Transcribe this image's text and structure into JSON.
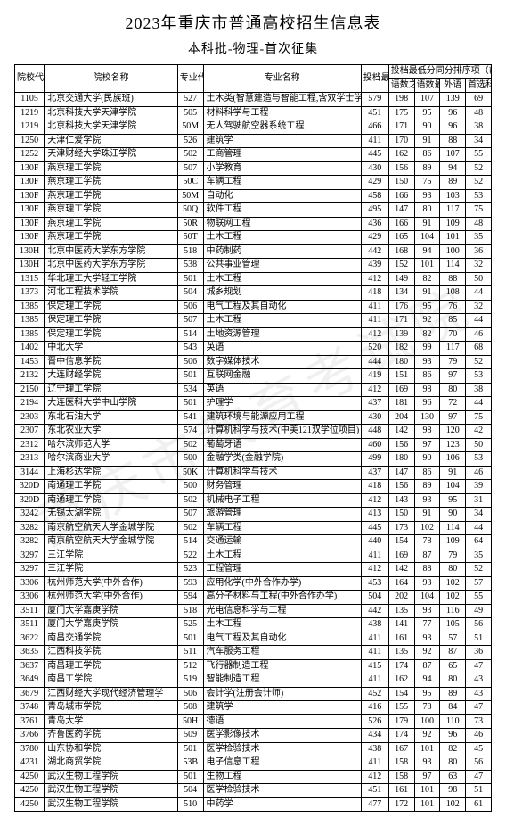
{
  "title": "2023年重庆市普通高校招生信息表",
  "subtitle": "本科批-物理-首次征集",
  "watermark": "重庆市教育考试院",
  "headers": {
    "code": "院校代号",
    "school": "院校名称",
    "mcode": "专业代号",
    "major": "专业名称",
    "minScore": "投档最低分",
    "tieGroup": "投档最低分同分排序项（前4项）",
    "t1": "语数之和",
    "t2": "语数最高",
    "t3": "外语",
    "t4": "首选科目"
  },
  "rows": [
    {
      "code": "1105",
      "school": "北京交通大学(民族班)",
      "mcode": "527",
      "major": "土木类(智慧建造与智能工程,含双学士学位项",
      "min": "579",
      "a": "198",
      "b": "107",
      "c": "139",
      "d": "69"
    },
    {
      "code": "1219",
      "school": "北京科技大学天津学院",
      "mcode": "505",
      "major": "材料科学与工程",
      "min": "451",
      "a": "175",
      "b": "95",
      "c": "96",
      "d": "48"
    },
    {
      "code": "1219",
      "school": "北京科技大学天津学院",
      "mcode": "50M",
      "major": "无人驾驶航空器系统工程",
      "min": "466",
      "a": "171",
      "b": "90",
      "c": "96",
      "d": "38"
    },
    {
      "code": "1250",
      "school": "天津仁爱学院",
      "mcode": "526",
      "major": "建筑学",
      "min": "411",
      "a": "170",
      "b": "91",
      "c": "88",
      "d": "34"
    },
    {
      "code": "1252",
      "school": "天津财经大学珠江学院",
      "mcode": "502",
      "major": "工商管理",
      "min": "445",
      "a": "162",
      "b": "86",
      "c": "107",
      "d": "55"
    },
    {
      "code": "130F",
      "school": "燕京理工学院",
      "mcode": "507",
      "major": "小学教育",
      "min": "430",
      "a": "156",
      "b": "89",
      "c": "94",
      "d": "52"
    },
    {
      "code": "130F",
      "school": "燕京理工学院",
      "mcode": "50C",
      "major": "车辆工程",
      "min": "429",
      "a": "150",
      "b": "75",
      "c": "89",
      "d": "52"
    },
    {
      "code": "130F",
      "school": "燕京理工学院",
      "mcode": "50M",
      "major": "自动化",
      "min": "458",
      "a": "166",
      "b": "93",
      "c": "103",
      "d": "53"
    },
    {
      "code": "130F",
      "school": "燕京理工学院",
      "mcode": "50Q",
      "major": "软件工程",
      "min": "495",
      "a": "147",
      "b": "80",
      "c": "117",
      "d": "75"
    },
    {
      "code": "130F",
      "school": "燕京理工学院",
      "mcode": "50R",
      "major": "物联网工程",
      "min": "436",
      "a": "166",
      "b": "91",
      "c": "109",
      "d": "48"
    },
    {
      "code": "130F",
      "school": "燕京理工学院",
      "mcode": "50T",
      "major": "土木工程",
      "min": "429",
      "a": "165",
      "b": "104",
      "c": "101",
      "d": "35"
    },
    {
      "code": "130H",
      "school": "北京中医药大学东方学院",
      "mcode": "518",
      "major": "中药制药",
      "min": "442",
      "a": "168",
      "b": "94",
      "c": "100",
      "d": "36"
    },
    {
      "code": "130H",
      "school": "北京中医药大学东方学院",
      "mcode": "538",
      "major": "公共事业管理",
      "min": "439",
      "a": "152",
      "b": "101",
      "c": "114",
      "d": "32"
    },
    {
      "code": "1315",
      "school": "华北理工大学轻工学院",
      "mcode": "501",
      "major": "土木工程",
      "min": "412",
      "a": "149",
      "b": "82",
      "c": "88",
      "d": "50"
    },
    {
      "code": "1373",
      "school": "河北工程技术学院",
      "mcode": "504",
      "major": "城乡规划",
      "min": "418",
      "a": "134",
      "b": "91",
      "c": "108",
      "d": "44"
    },
    {
      "code": "1385",
      "school": "保定理工学院",
      "mcode": "506",
      "major": "电气工程及其自动化",
      "min": "411",
      "a": "176",
      "b": "95",
      "c": "76",
      "d": "32"
    },
    {
      "code": "1385",
      "school": "保定理工学院",
      "mcode": "507",
      "major": "土木工程",
      "min": "411",
      "a": "171",
      "b": "92",
      "c": "85",
      "d": "44"
    },
    {
      "code": "1385",
      "school": "保定理工学院",
      "mcode": "514",
      "major": "土地资源管理",
      "min": "412",
      "a": "139",
      "b": "82",
      "c": "70",
      "d": "46"
    },
    {
      "code": "1402",
      "school": "中北大学",
      "mcode": "543",
      "major": "英语",
      "min": "520",
      "a": "182",
      "b": "99",
      "c": "117",
      "d": "68"
    },
    {
      "code": "1453",
      "school": "晋中信息学院",
      "mcode": "506",
      "major": "数字媒体技术",
      "min": "444",
      "a": "180",
      "b": "93",
      "c": "79",
      "d": "52"
    },
    {
      "code": "2132",
      "school": "大连财经学院",
      "mcode": "501",
      "major": "互联网金融",
      "min": "419",
      "a": "151",
      "b": "86",
      "c": "97",
      "d": "53"
    },
    {
      "code": "2150",
      "school": "辽宁理工学院",
      "mcode": "534",
      "major": "英语",
      "min": "412",
      "a": "169",
      "b": "98",
      "c": "80",
      "d": "38"
    },
    {
      "code": "2194",
      "school": "大连医科大学中山学院",
      "mcode": "501",
      "major": "护理学",
      "min": "437",
      "a": "181",
      "b": "96",
      "c": "72",
      "d": "44"
    },
    {
      "code": "2303",
      "school": "东北石油大学",
      "mcode": "541",
      "major": "建筑环境与能源应用工程",
      "min": "430",
      "a": "204",
      "b": "130",
      "c": "97",
      "d": "75"
    },
    {
      "code": "2307",
      "school": "东北农业大学",
      "mcode": "574",
      "major": "计算机科学与技术(中美121双学位项目)",
      "min": "448",
      "a": "142",
      "b": "98",
      "c": "120",
      "d": "42"
    },
    {
      "code": "2312",
      "school": "哈尔滨师范大学",
      "mcode": "502",
      "major": "葡萄牙语",
      "min": "460",
      "a": "156",
      "b": "97",
      "c": "123",
      "d": "50"
    },
    {
      "code": "2313",
      "school": "哈尔滨商业大学",
      "mcode": "500",
      "major": "金融学类(金融学院)",
      "min": "499",
      "a": "180",
      "b": "90",
      "c": "106",
      "d": "53"
    },
    {
      "code": "3144",
      "school": "上海杉达学院",
      "mcode": "50K",
      "major": "计算机科学与技术",
      "min": "437",
      "a": "147",
      "b": "86",
      "c": "91",
      "d": "46"
    },
    {
      "code": "320D",
      "school": "南通理工学院",
      "mcode": "500",
      "major": "财务管理",
      "min": "418",
      "a": "156",
      "b": "89",
      "c": "104",
      "d": "39"
    },
    {
      "code": "320D",
      "school": "南通理工学院",
      "mcode": "502",
      "major": "机械电子工程",
      "min": "412",
      "a": "143",
      "b": "93",
      "c": "95",
      "d": "31"
    },
    {
      "code": "3242",
      "school": "无锡太湖学院",
      "mcode": "507",
      "major": "旅游管理",
      "min": "413",
      "a": "150",
      "b": "91",
      "c": "90",
      "d": "34"
    },
    {
      "code": "3282",
      "school": "南京航空航天大学金城学院",
      "mcode": "502",
      "major": "车辆工程",
      "min": "445",
      "a": "173",
      "b": "102",
      "c": "114",
      "d": "44"
    },
    {
      "code": "3282",
      "school": "南京航空航天大学金城学院",
      "mcode": "514",
      "major": "交通运输",
      "min": "440",
      "a": "154",
      "b": "78",
      "c": "109",
      "d": "64"
    },
    {
      "code": "3297",
      "school": "三江学院",
      "mcode": "522",
      "major": "土木工程",
      "min": "411",
      "a": "169",
      "b": "87",
      "c": "79",
      "d": "35"
    },
    {
      "code": "3297",
      "school": "三江学院",
      "mcode": "523",
      "major": "工程管理",
      "min": "412",
      "a": "142",
      "b": "88",
      "c": "80",
      "d": "52"
    },
    {
      "code": "3306",
      "school": "杭州师范大学(中外合作)",
      "mcode": "593",
      "major": "应用化学(中外合作办学)",
      "min": "453",
      "a": "164",
      "b": "93",
      "c": "102",
      "d": "57"
    },
    {
      "code": "3306",
      "school": "杭州师范大学(中外合作)",
      "mcode": "594",
      "major": "高分子材料与工程(中外合作办学)",
      "min": "504",
      "a": "202",
      "b": "104",
      "c": "102",
      "d": "55"
    },
    {
      "code": "3511",
      "school": "厦门大学嘉庚学院",
      "mcode": "518",
      "major": "光电信息科学与工程",
      "min": "442",
      "a": "135",
      "b": "93",
      "c": "116",
      "d": "49"
    },
    {
      "code": "3511",
      "school": "厦门大学嘉庚学院",
      "mcode": "525",
      "major": "土木工程",
      "min": "438",
      "a": "141",
      "b": "77",
      "c": "105",
      "d": "56"
    },
    {
      "code": "3622",
      "school": "南昌交通学院",
      "mcode": "501",
      "major": "电气工程及其自动化",
      "min": "411",
      "a": "161",
      "b": "93",
      "c": "57",
      "d": "51"
    },
    {
      "code": "3635",
      "school": "江西科技学院",
      "mcode": "511",
      "major": "汽车服务工程",
      "min": "411",
      "a": "135",
      "b": "92",
      "c": "87",
      "d": "36"
    },
    {
      "code": "3637",
      "school": "南昌理工学院",
      "mcode": "512",
      "major": "飞行器制造工程",
      "min": "415",
      "a": "174",
      "b": "87",
      "c": "65",
      "d": "47"
    },
    {
      "code": "3649",
      "school": "南昌工学院",
      "mcode": "519",
      "major": "智能制造工程",
      "min": "411",
      "a": "162",
      "b": "94",
      "c": "80",
      "d": "43"
    },
    {
      "code": "3679",
      "school": "江西财经大学现代经济管理学",
      "mcode": "506",
      "major": "会计学(注册会计师)",
      "min": "452",
      "a": "154",
      "b": "95",
      "c": "89",
      "d": "43"
    },
    {
      "code": "3748",
      "school": "青岛城市学院",
      "mcode": "508",
      "major": "建筑学",
      "min": "416",
      "a": "155",
      "b": "78",
      "c": "84",
      "d": "47"
    },
    {
      "code": "3761",
      "school": "青岛大学",
      "mcode": "50H",
      "major": "德语",
      "min": "526",
      "a": "179",
      "b": "100",
      "c": "110",
      "d": "73"
    },
    {
      "code": "3766",
      "school": "齐鲁医药学院",
      "mcode": "509",
      "major": "医学影像技术",
      "min": "434",
      "a": "174",
      "b": "92",
      "c": "96",
      "d": "46"
    },
    {
      "code": "3780",
      "school": "山东协和学院",
      "mcode": "501",
      "major": "医学检验技术",
      "min": "438",
      "a": "167",
      "b": "101",
      "c": "82",
      "d": "45"
    },
    {
      "code": "4231",
      "school": "湖北商贸学院",
      "mcode": "53B",
      "major": "电子信息工程",
      "min": "411",
      "a": "158",
      "b": "93",
      "c": "80",
      "d": "56"
    },
    {
      "code": "4250",
      "school": "武汉生物工程学院",
      "mcode": "501",
      "major": "生物工程",
      "min": "412",
      "a": "158",
      "b": "97",
      "c": "63",
      "d": "47"
    },
    {
      "code": "4250",
      "school": "武汉生物工程学院",
      "mcode": "504",
      "major": "医学检验技术",
      "min": "451",
      "a": "161",
      "b": "101",
      "c": "98",
      "d": "51"
    },
    {
      "code": "4250",
      "school": "武汉生物工程学院",
      "mcode": "510",
      "major": "中药学",
      "min": "477",
      "a": "172",
      "b": "101",
      "c": "102",
      "d": "61"
    }
  ]
}
